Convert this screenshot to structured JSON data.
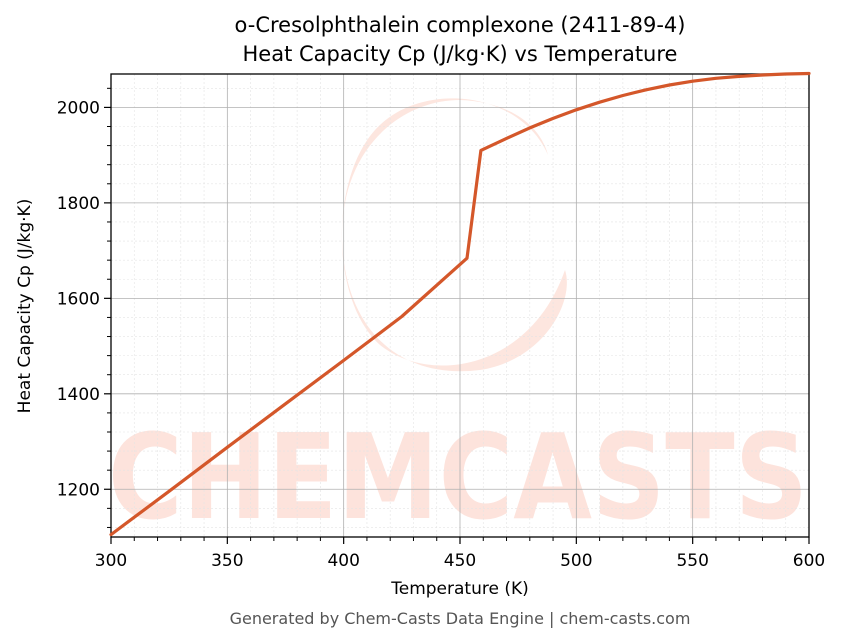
{
  "chart_data": {
    "type": "line",
    "title": "o-Cresolphthalein complexone (2411-89-4)",
    "subtitle": "Heat Capacity Cp (J/kg·K) vs Temperature",
    "xlabel": "Temperature (K)",
    "ylabel": "Heat Capacity Cp (J/kg·K)",
    "xlim": [
      300,
      600
    ],
    "ylim": [
      1100,
      2070
    ],
    "x_ticks": [
      300,
      350,
      400,
      450,
      500,
      550,
      600
    ],
    "y_ticks": [
      1200,
      1400,
      1600,
      1800,
      2000
    ],
    "grid": true,
    "series": [
      {
        "color": "#d4572a",
        "x": [
          300,
          325,
          350,
          375,
          400,
          425,
          453,
          459,
          470,
          480,
          490,
          500,
          510,
          520,
          530,
          540,
          550,
          560,
          570,
          580,
          590,
          600
        ],
        "y": [
          1105,
          1196,
          1288,
          1379,
          1470,
          1562,
          1684,
          1910,
          1935,
          1957,
          1977,
          1995,
          2011,
          2025,
          2037,
          2047,
          2055,
          2061,
          2065,
          2068,
          2070,
          2071
        ]
      }
    ]
  },
  "watermark": {
    "text": "CHEMCASTS",
    "color": "#fde3dc"
  },
  "footer": "Generated by Chem-Casts Data Engine | chem-casts.com"
}
